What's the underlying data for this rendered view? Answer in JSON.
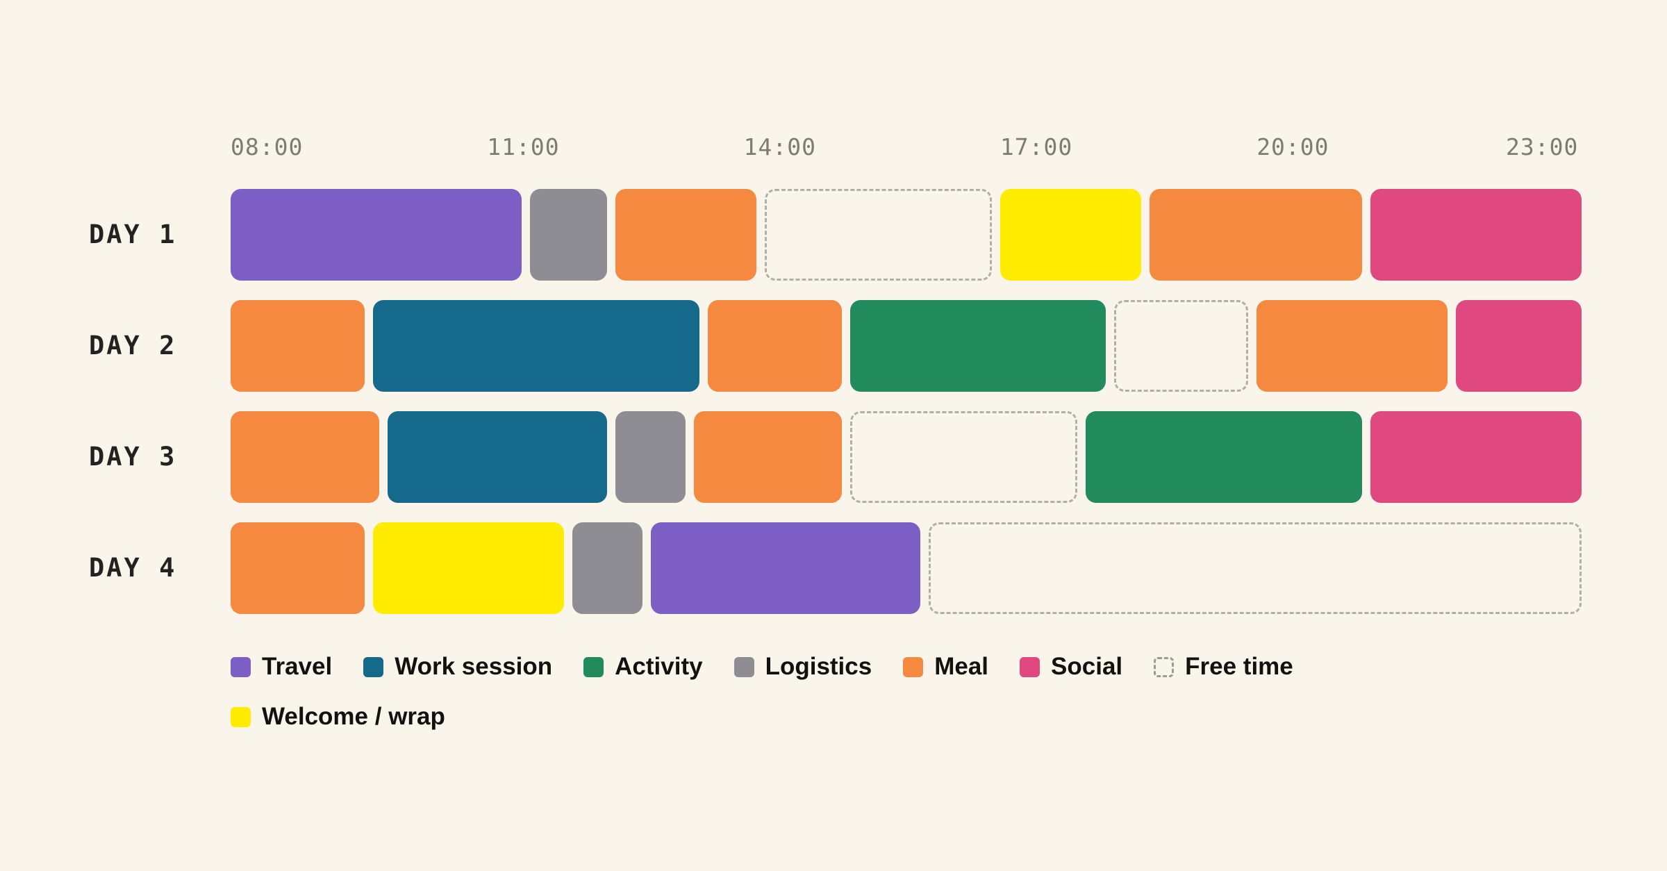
{
  "chart_data": {
    "type": "timeline",
    "x_axis": {
      "ticks": [
        "08:00",
        "11:00",
        "14:00",
        "17:00",
        "20:00",
        "23:00"
      ],
      "range_hours": [
        8,
        23.8
      ]
    },
    "categories": {
      "travel": {
        "label": "Travel",
        "color": "#7c5ec4"
      },
      "work": {
        "label": "Work session",
        "color": "#156a8c"
      },
      "activity": {
        "label": "Activity",
        "color": "#218b5e"
      },
      "logistics": {
        "label": "Logistics",
        "color": "#8d8d93"
      },
      "meal": {
        "label": "Meal",
        "color": "#f68940"
      },
      "social": {
        "label": "Social",
        "color": "#e04880"
      },
      "free": {
        "label": "Free time",
        "color": "dashed"
      },
      "welcome": {
        "label": "Welcome / wrap",
        "color": "#ffec00"
      }
    },
    "legend_order": [
      "travel",
      "work",
      "activity",
      "logistics",
      "meal",
      "social",
      "free",
      "welcome"
    ],
    "legend_placement": "bottom",
    "days": [
      {
        "label": "DAY 1",
        "blocks": [
          {
            "start": "08:00",
            "end": "11:30",
            "category": "travel"
          },
          {
            "start": "11:30",
            "end": "12:30",
            "category": "logistics"
          },
          {
            "start": "12:30",
            "end": "14:15",
            "category": "meal"
          },
          {
            "start": "14:15",
            "end": "17:00",
            "category": "free"
          },
          {
            "start": "17:00",
            "end": "18:45",
            "category": "welcome"
          },
          {
            "start": "18:45",
            "end": "21:20",
            "category": "meal"
          },
          {
            "start": "21:20",
            "end": "23:48",
            "category": "social"
          }
        ]
      },
      {
        "label": "DAY 2",
        "blocks": [
          {
            "start": "08:00",
            "end": "09:40",
            "category": "meal"
          },
          {
            "start": "09:40",
            "end": "13:35",
            "category": "work"
          },
          {
            "start": "13:35",
            "end": "15:15",
            "category": "meal"
          },
          {
            "start": "15:15",
            "end": "18:20",
            "category": "activity"
          },
          {
            "start": "18:20",
            "end": "20:00",
            "category": "free"
          },
          {
            "start": "20:00",
            "end": "22:20",
            "category": "meal"
          },
          {
            "start": "22:20",
            "end": "23:48",
            "category": "social"
          }
        ]
      },
      {
        "label": "DAY 3",
        "blocks": [
          {
            "start": "08:00",
            "end": "09:50",
            "category": "meal"
          },
          {
            "start": "09:50",
            "end": "12:30",
            "category": "work"
          },
          {
            "start": "12:30",
            "end": "13:25",
            "category": "logistics"
          },
          {
            "start": "13:25",
            "end": "15:15",
            "category": "meal"
          },
          {
            "start": "15:15",
            "end": "18:00",
            "category": "free"
          },
          {
            "start": "18:00",
            "end": "21:20",
            "category": "activity"
          },
          {
            "start": "21:20",
            "end": "23:48",
            "category": "social"
          }
        ]
      },
      {
        "label": "DAY 4",
        "blocks": [
          {
            "start": "08:00",
            "end": "09:40",
            "category": "meal"
          },
          {
            "start": "09:40",
            "end": "12:00",
            "category": "welcome"
          },
          {
            "start": "12:00",
            "end": "12:55",
            "category": "logistics"
          },
          {
            "start": "12:55",
            "end": "16:10",
            "category": "travel"
          },
          {
            "start": "16:10",
            "end": "23:48",
            "category": "free"
          }
        ]
      }
    ]
  }
}
